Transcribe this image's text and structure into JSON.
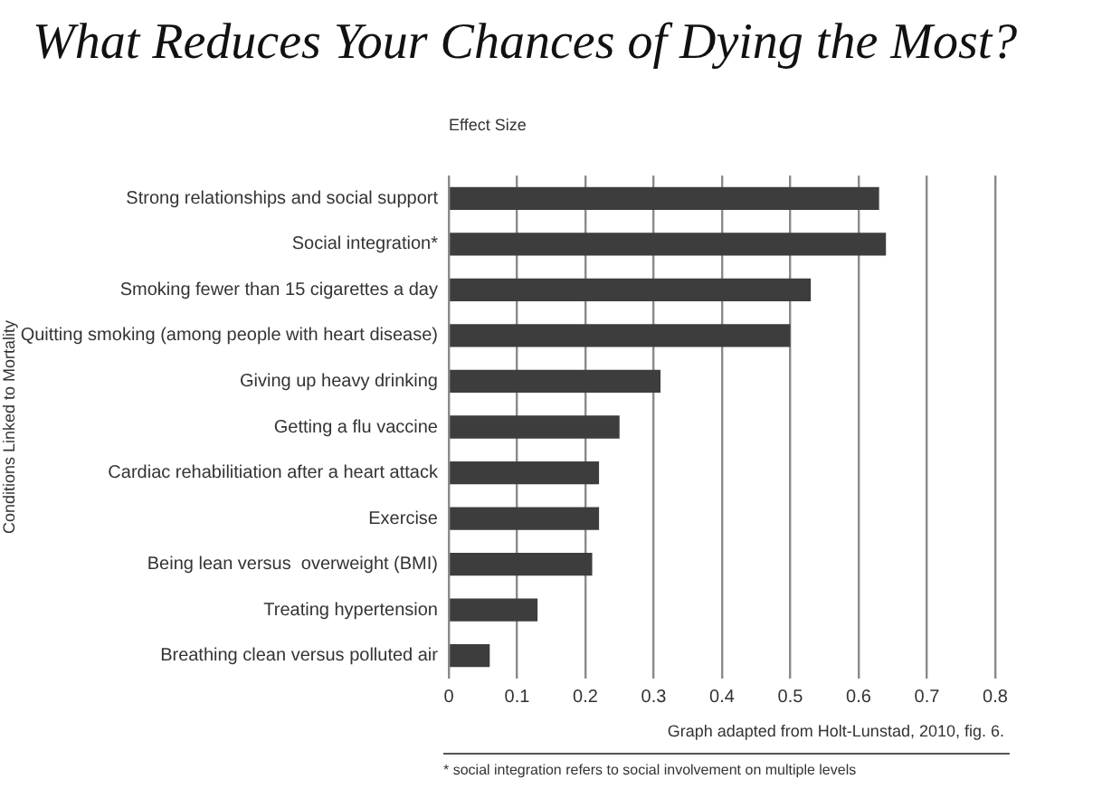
{
  "chart_data": {
    "type": "bar",
    "orientation": "horizontal",
    "title": "What Reduces Your Chances of Dying the Most?",
    "xlabel": "Effect Size",
    "ylabel": "Conditions Linked to Mortality",
    "categories": [
      "Strong relationships and social support",
      "Social integration*",
      "Smoking fewer than 15 cigarettes a day",
      "Quitting smoking (among people with heart disease)",
      "Giving up heavy drinking",
      "Getting a flu vaccine",
      "Cardiac rehabilitiation after a heart attack",
      "Exercise",
      "Being lean versus  overweight (BMI)",
      "Treating hypertension",
      "Breathing clean versus polluted air"
    ],
    "values": [
      0.63,
      0.64,
      0.53,
      0.5,
      0.31,
      0.25,
      0.22,
      0.22,
      0.21,
      0.13,
      0.06
    ],
    "color": "#3d3d3d",
    "xlim": [
      0,
      0.8
    ],
    "xticks": [
      0,
      0.1,
      0.2,
      0.3,
      0.4,
      0.5,
      0.6,
      0.7,
      0.8
    ],
    "grid": "x",
    "annotations": [
      "Graph adapted from Holt-Lunstad, 2010, fig. 6.",
      "* social integration refers to social involvement on multiple levels"
    ]
  }
}
